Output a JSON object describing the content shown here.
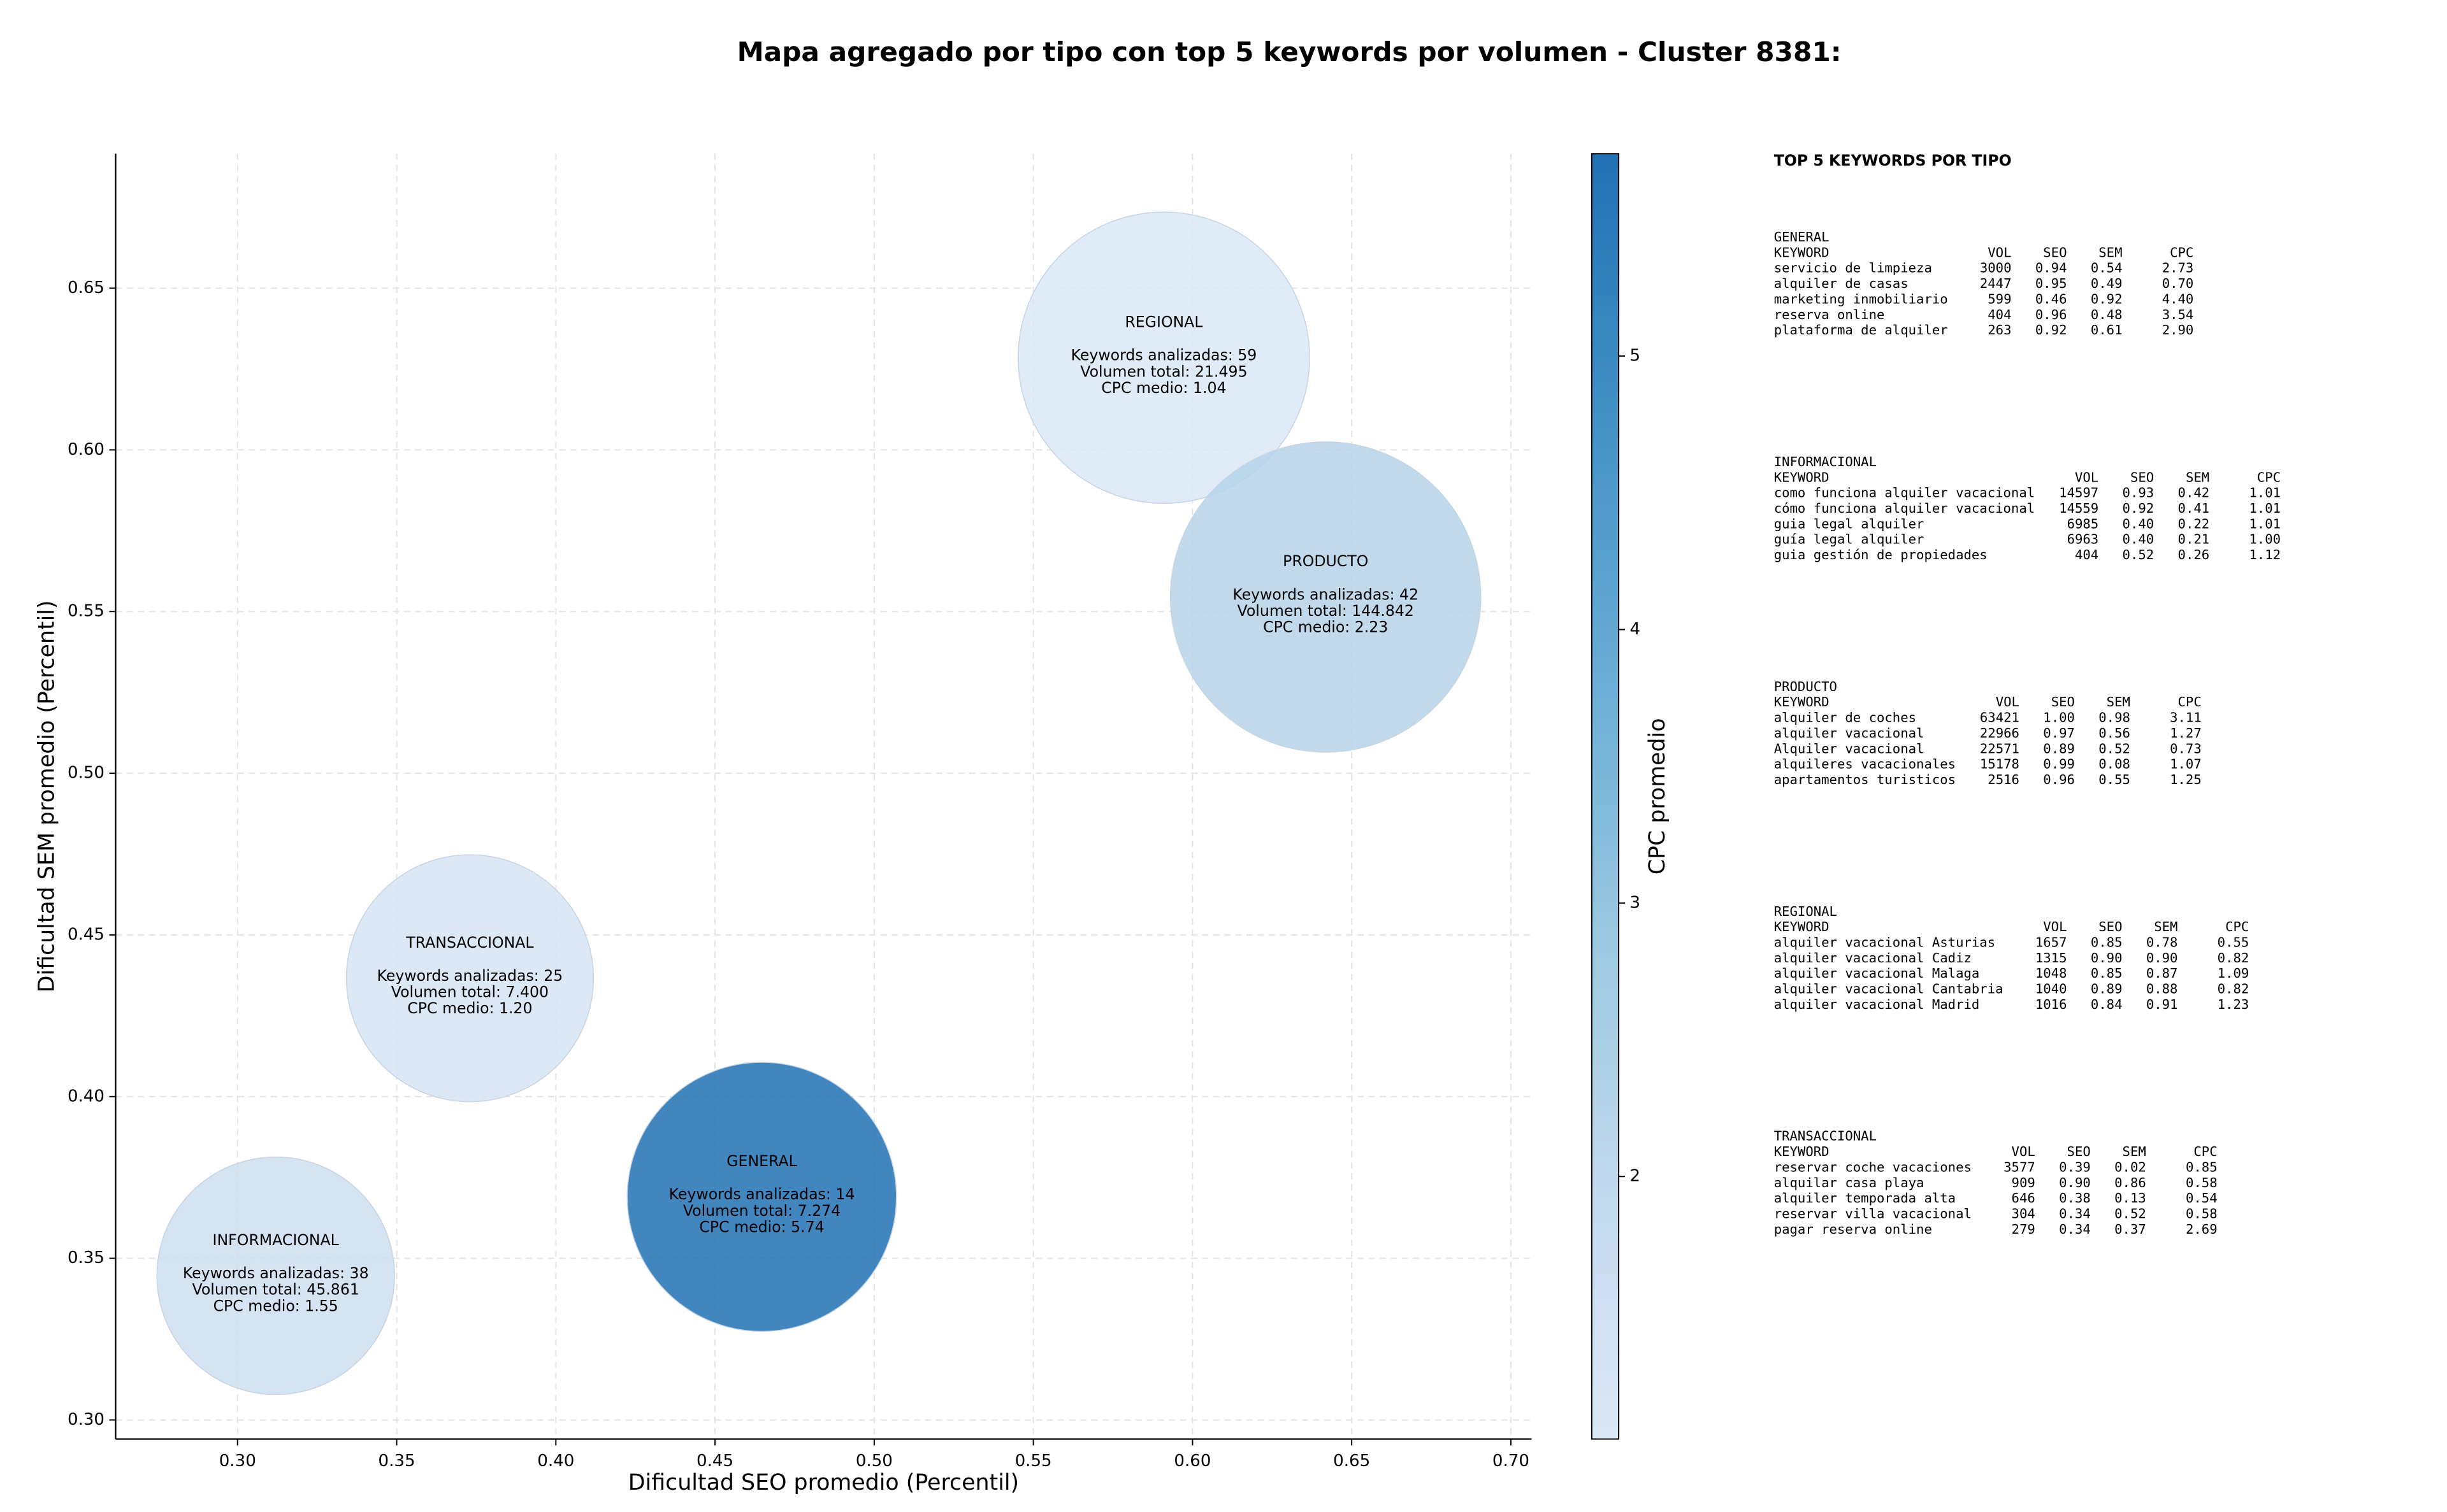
{
  "chart_data": {
    "type": "bubble",
    "title": "Mapa agregado por tipo con top 5 keywords por volumen - Cluster 8381:",
    "xlabel": "Dificultad SEO promedio (Percentil)",
    "ylabel": "Dificultad SEM promedio (Percentil)",
    "xlim": [
      0.2617,
      0.7065
    ],
    "ylim": [
      0.2941,
      0.6916
    ],
    "xticks": [
      {
        "value": 0.3,
        "label": "0.30"
      },
      {
        "value": 0.35,
        "label": "0.35"
      },
      {
        "value": 0.4,
        "label": "0.40"
      },
      {
        "value": 0.45,
        "label": "0.45"
      },
      {
        "value": 0.5,
        "label": "0.50"
      },
      {
        "value": 0.55,
        "label": "0.55"
      },
      {
        "value": 0.6,
        "label": "0.60"
      },
      {
        "value": 0.65,
        "label": "0.65"
      },
      {
        "value": 0.7,
        "label": "0.70"
      }
    ],
    "yticks": [
      {
        "value": 0.3,
        "label": "0.30"
      },
      {
        "value": 0.35,
        "label": "0.35"
      },
      {
        "value": 0.4,
        "label": "0.40"
      },
      {
        "value": 0.45,
        "label": "0.45"
      },
      {
        "value": 0.5,
        "label": "0.50"
      },
      {
        "value": 0.55,
        "label": "0.55"
      },
      {
        "value": 0.6,
        "label": "0.60"
      },
      {
        "value": 0.65,
        "label": "0.65"
      }
    ],
    "grid": true,
    "colorbar": {
      "label": "CPC promedio",
      "lim": [
        1.04,
        5.74
      ],
      "ticks": [
        2,
        3,
        4,
        5
      ],
      "colormap": "Blues"
    },
    "series": [
      {
        "name": "REGIONAL",
        "x": 0.591,
        "y": 0.6285,
        "size": 92,
        "cpc": 1.04,
        "annotation": [
          "Keywords analizadas: 59",
          "Volumen total: 21.495",
          "CPC medio: 1.04"
        ]
      },
      {
        "name": "PRODUCTO",
        "x": 0.6418,
        "y": 0.5545,
        "size": 98,
        "cpc": 2.23,
        "annotation": [
          "Keywords analizadas: 42",
          "Volumen total: 144.842",
          "CPC medio: 2.23"
        ]
      },
      {
        "name": "TRANSACCIONAL",
        "x": 0.373,
        "y": 0.4366,
        "size": 78,
        "cpc": 1.2,
        "annotation": [
          "Keywords analizadas: 25",
          "Volumen total: 7.400",
          "CPC medio: 1.20"
        ]
      },
      {
        "name": "GENERAL",
        "x": 0.4647,
        "y": 0.369,
        "size": 85,
        "cpc": 5.74,
        "annotation": [
          "Keywords analizadas: 14",
          "Volumen total: 7.274",
          "CPC medio: 5.74"
        ]
      },
      {
        "name": "INFORMACIONAL",
        "x": 0.312,
        "y": 0.3446,
        "size": 75,
        "cpc": 1.55,
        "annotation": [
          "Keywords analizadas: 38",
          "Volumen total: 45.861",
          "CPC medio: 1.55"
        ]
      }
    ]
  },
  "table": {
    "title": "TOP 5 KEYWORDS POR TIPO",
    "columns": [
      "KEYWORD",
      "VOL",
      "SEO",
      "SEM",
      "CPC"
    ],
    "sections": [
      {
        "name": "GENERAL",
        "rows": [
          [
            "servicio de limpieza",
            "3000",
            "0.94",
            "0.54",
            "2.73"
          ],
          [
            "alquiler de casas",
            "2447",
            "0.95",
            "0.49",
            "0.70"
          ],
          [
            "marketing inmobiliario",
            "599",
            "0.46",
            "0.92",
            "4.40"
          ],
          [
            "reserva online",
            "404",
            "0.96",
            "0.48",
            "3.54"
          ],
          [
            "plataforma de alquiler",
            "263",
            "0.92",
            "0.61",
            "2.90"
          ]
        ]
      },
      {
        "name": "INFORMACIONAL",
        "rows": [
          [
            "como funciona alquiler vacacional",
            "14597",
            "0.93",
            "0.42",
            "1.01"
          ],
          [
            "cómo funciona alquiler vacacional",
            "14559",
            "0.92",
            "0.41",
            "1.01"
          ],
          [
            "guia legal alquiler",
            "6985",
            "0.40",
            "0.22",
            "1.01"
          ],
          [
            "guía legal alquiler",
            "6963",
            "0.40",
            "0.21",
            "1.00"
          ],
          [
            "guia gestión de propiedades",
            "404",
            "0.52",
            "0.26",
            "1.12"
          ]
        ]
      },
      {
        "name": "PRODUCTO",
        "rows": [
          [
            "alquiler de coches",
            "63421",
            "1.00",
            "0.98",
            "3.11"
          ],
          [
            "alquiler vacacional",
            "22966",
            "0.97",
            "0.56",
            "1.27"
          ],
          [
            "Alquiler vacacional",
            "22571",
            "0.89",
            "0.52",
            "0.73"
          ],
          [
            "alquileres vacacionales",
            "15178",
            "0.99",
            "0.08",
            "1.07"
          ],
          [
            "apartamentos turisticos",
            "2516",
            "0.96",
            "0.55",
            "1.25"
          ]
        ]
      },
      {
        "name": "REGIONAL",
        "rows": [
          [
            "alquiler vacacional Asturias",
            "1657",
            "0.85",
            "0.78",
            "0.55"
          ],
          [
            "alquiler vacacional Cadiz",
            "1315",
            "0.90",
            "0.90",
            "0.82"
          ],
          [
            "alquiler vacacional Malaga",
            "1048",
            "0.85",
            "0.87",
            "1.09"
          ],
          [
            "alquiler vacacional Cantabria",
            "1040",
            "0.89",
            "0.88",
            "0.82"
          ],
          [
            "alquiler vacacional Madrid",
            "1016",
            "0.84",
            "0.91",
            "1.23"
          ]
        ]
      },
      {
        "name": "TRANSACCIONAL",
        "rows": [
          [
            "reservar coche vacaciones",
            "3577",
            "0.39",
            "0.02",
            "0.85"
          ],
          [
            "alquilar casa playa",
            "909",
            "0.90",
            "0.86",
            "0.58"
          ],
          [
            "alquiler temporada alta",
            "646",
            "0.38",
            "0.13",
            "0.54"
          ],
          [
            "reservar villa vacacional",
            "304",
            "0.34",
            "0.52",
            "0.58"
          ],
          [
            "pagar reserva online",
            "279",
            "0.34",
            "0.37",
            "2.69"
          ]
        ]
      }
    ]
  }
}
